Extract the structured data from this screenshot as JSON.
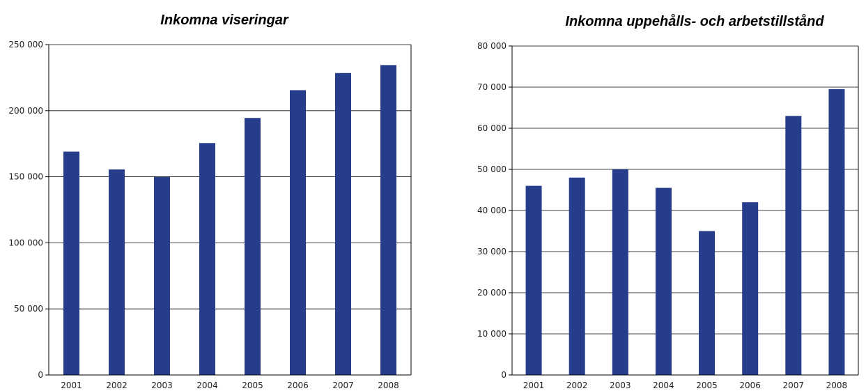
{
  "chart_data": [
    {
      "type": "bar",
      "title": "Inkomna viseringar",
      "xlabel": "",
      "ylabel": "",
      "categories": [
        "2001",
        "2002",
        "2003",
        "2004",
        "2005",
        "2006",
        "2007",
        "2008"
      ],
      "values": [
        169000,
        155500,
        149800,
        175500,
        194500,
        215500,
        228500,
        234500
      ],
      "ylim": [
        0,
        250000
      ],
      "yticks": [
        0,
        50000,
        100000,
        150000,
        200000,
        250000
      ],
      "ytick_labels": [
        "0",
        "50 000",
        "100 000",
        "150 000",
        "200 000",
        "250 000"
      ],
      "grid": "horizontal",
      "bar_color": "#263d8c"
    },
    {
      "type": "bar",
      "title": "Inkomna uppehålls- och arbetstillstånd",
      "xlabel": "",
      "ylabel": "",
      "categories": [
        "2001",
        "2002",
        "2003",
        "2004",
        "2005",
        "2006",
        "2007",
        "2008"
      ],
      "values": [
        46000,
        48000,
        50000,
        45500,
        35000,
        42000,
        63000,
        69500
      ],
      "ylim": [
        0,
        80000
      ],
      "yticks": [
        0,
        10000,
        20000,
        30000,
        40000,
        50000,
        60000,
        70000,
        80000
      ],
      "ytick_labels": [
        "0",
        "10 000",
        "20 000",
        "30 000",
        "40 000",
        "50 000",
        "60 000",
        "70 000",
        "80 000"
      ],
      "grid": "horizontal",
      "bar_color": "#263d8c"
    }
  ]
}
